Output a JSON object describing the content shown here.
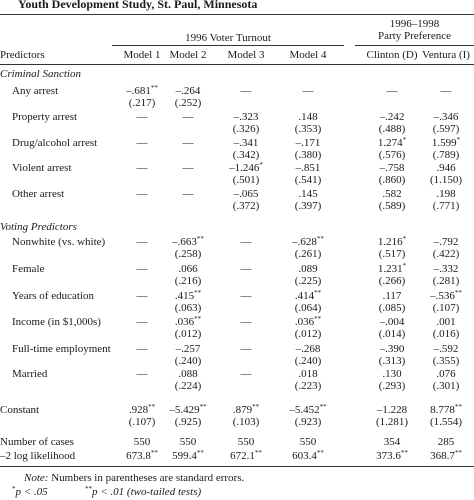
{
  "title": "Youth Development Study, St. Paul, Minnesota",
  "header": {
    "group1": "1996 Voter Turnout",
    "group2_line1": "1996–1998",
    "group2_line2": "Party Preference",
    "predictors": "Predictors",
    "models": [
      "Model 1",
      "Model 2",
      "Model 3",
      "Model 4",
      "Clinton (D)",
      "Ventura (I)"
    ]
  },
  "sections": [
    {
      "label": "Criminal Sanction",
      "rows": [
        {
          "name": "Any arrest",
          "cells": [
            {
              "v": "–.681",
              "sig": "**",
              "se": "(.217)"
            },
            {
              "v": "–.264",
              "sig": "",
              "se": "(.252)"
            },
            {
              "v": "—",
              "sig": "",
              "se": ""
            },
            {
              "v": "—",
              "sig": "",
              "se": ""
            },
            {
              "v": "—",
              "sig": "",
              "se": ""
            },
            {
              "v": "—",
              "sig": "",
              "se": ""
            }
          ]
        },
        {
          "name": "Property arrest",
          "cells": [
            {
              "v": "—",
              "sig": "",
              "se": ""
            },
            {
              "v": "—",
              "sig": "",
              "se": ""
            },
            {
              "v": "–.323",
              "sig": "",
              "se": "(.326)"
            },
            {
              "v": ".148",
              "sig": "",
              "se": "(.353)"
            },
            {
              "v": "–.242",
              "sig": "",
              "se": "(.488)"
            },
            {
              "v": "–.346",
              "sig": "",
              "se": "(.597)"
            }
          ]
        },
        {
          "name": "Drug/alcohol arrest",
          "cells": [
            {
              "v": "—",
              "sig": "",
              "se": ""
            },
            {
              "v": "—",
              "sig": "",
              "se": ""
            },
            {
              "v": "–.341",
              "sig": "",
              "se": "(.342)"
            },
            {
              "v": "–.171",
              "sig": "",
              "se": "(.380)"
            },
            {
              "v": "1.274",
              "sig": "*",
              "se": "(.576)"
            },
            {
              "v": "1.599",
              "sig": "*",
              "se": "(.789)"
            }
          ]
        },
        {
          "name": "Violent arrest",
          "cells": [
            {
              "v": "—",
              "sig": "",
              "se": ""
            },
            {
              "v": "—",
              "sig": "",
              "se": ""
            },
            {
              "v": "–1.246",
              "sig": "*",
              "se": "(.501)"
            },
            {
              "v": "–.851",
              "sig": "",
              "se": "(.541)"
            },
            {
              "v": "–.758",
              "sig": "",
              "se": "(.860)"
            },
            {
              "v": ".946",
              "sig": "",
              "se": "(1.150)"
            }
          ]
        },
        {
          "name": "Other arrest",
          "cells": [
            {
              "v": "—",
              "sig": "",
              "se": ""
            },
            {
              "v": "—",
              "sig": "",
              "se": ""
            },
            {
              "v": "–.065",
              "sig": "",
              "se": "(.372)"
            },
            {
              "v": ".145",
              "sig": "",
              "se": "(.397)"
            },
            {
              "v": ".582",
              "sig": "",
              "se": "(.589)"
            },
            {
              "v": ".198",
              "sig": "",
              "se": "(.771)"
            }
          ]
        }
      ]
    },
    {
      "label": "Voting Predictors",
      "rows": [
        {
          "name": "Nonwhite (vs. white)",
          "cells": [
            {
              "v": "—",
              "sig": "",
              "se": ""
            },
            {
              "v": "–.663",
              "sig": "**",
              "se": "(.258)"
            },
            {
              "v": "—",
              "sig": "",
              "se": ""
            },
            {
              "v": "–.628",
              "sig": "**",
              "se": "(.261)"
            },
            {
              "v": "1.216",
              "sig": "*",
              "se": "(.517)"
            },
            {
              "v": "–.792",
              "sig": "",
              "se": "(.422)"
            }
          ]
        },
        {
          "name": "Female",
          "cells": [
            {
              "v": "—",
              "sig": "",
              "se": ""
            },
            {
              "v": ".066",
              "sig": "",
              "se": "(.216)"
            },
            {
              "v": "—",
              "sig": "",
              "se": ""
            },
            {
              "v": ".089",
              "sig": "",
              "se": "(.225)"
            },
            {
              "v": "1.231",
              "sig": "*",
              "se": "(.266)"
            },
            {
              "v": "–.332",
              "sig": "",
              "se": "(.281)"
            }
          ]
        },
        {
          "name": "Years of education",
          "cells": [
            {
              "v": "—",
              "sig": "",
              "se": ""
            },
            {
              "v": ".415",
              "sig": "**",
              "se": "(.063)"
            },
            {
              "v": "—",
              "sig": "",
              "se": ""
            },
            {
              "v": ".414",
              "sig": "**",
              "se": "(.064)"
            },
            {
              "v": ".117",
              "sig": "",
              "se": "(.085)"
            },
            {
              "v": "–.536",
              "sig": "**",
              "se": "(.107)"
            }
          ]
        },
        {
          "name": "Income (in $1,000s)",
          "cells": [
            {
              "v": "—",
              "sig": "",
              "se": ""
            },
            {
              "v": ".036",
              "sig": "**",
              "se": "(.012)"
            },
            {
              "v": "—",
              "sig": "",
              "se": ""
            },
            {
              "v": ".036",
              "sig": "**",
              "se": "(.012)"
            },
            {
              "v": "–.004",
              "sig": "",
              "se": "(.014)"
            },
            {
              "v": ".001",
              "sig": "",
              "se": "(.016)"
            }
          ]
        },
        {
          "name": "Full-time employment",
          "cells": [
            {
              "v": "—",
              "sig": "",
              "se": ""
            },
            {
              "v": "–.257",
              "sig": "",
              "se": "(.240)"
            },
            {
              "v": "—",
              "sig": "",
              "se": ""
            },
            {
              "v": "–.268",
              "sig": "",
              "se": "(.240)"
            },
            {
              "v": "–.390",
              "sig": "",
              "se": "(.313)"
            },
            {
              "v": "–.592",
              "sig": "",
              "se": "(.355)"
            }
          ]
        },
        {
          "name": "Married",
          "cells": [
            {
              "v": "—",
              "sig": "",
              "se": ""
            },
            {
              "v": ".088",
              "sig": "",
              "se": "(.224)"
            },
            {
              "v": "—",
              "sig": "",
              "se": ""
            },
            {
              "v": ".018",
              "sig": "",
              "se": "(.223)"
            },
            {
              "v": ".130",
              "sig": "",
              "se": "(.293)"
            },
            {
              "v": ".076",
              "sig": "",
              "se": "(.301)"
            }
          ]
        }
      ]
    }
  ],
  "constant": {
    "name": "Constant",
    "cells": [
      {
        "v": ".928",
        "sig": "**",
        "se": "(.107)"
      },
      {
        "v": "–5.429",
        "sig": "**",
        "se": "(.925)"
      },
      {
        "v": ".879",
        "sig": "**",
        "se": "(.103)"
      },
      {
        "v": "–5.452",
        "sig": "**",
        "se": "(.923)"
      },
      {
        "v": "–1.228",
        "sig": "",
        "se": "(1.281)"
      },
      {
        "v": "8.778",
        "sig": "**",
        "se": "(1.554)"
      }
    ]
  },
  "cases": {
    "name": "Number of cases",
    "cells": [
      {
        "v": "550",
        "sig": ""
      },
      {
        "v": "550",
        "sig": ""
      },
      {
        "v": "550",
        "sig": ""
      },
      {
        "v": "550",
        "sig": ""
      },
      {
        "v": "354",
        "sig": ""
      },
      {
        "v": "285",
        "sig": ""
      }
    ]
  },
  "loglik": {
    "name": "–2 log likelihood",
    "cells": [
      {
        "v": "673.8",
        "sig": "**"
      },
      {
        "v": "599.4",
        "sig": "**"
      },
      {
        "v": "672.1",
        "sig": "**"
      },
      {
        "v": "603.4",
        "sig": "**"
      },
      {
        "v": "373.6",
        "sig": "**"
      },
      {
        "v": "368.7",
        "sig": "**"
      }
    ]
  },
  "notes": {
    "note_label": "Note:",
    "note_text": " Numbers in parentheses are standard errors.",
    "p05_mark": "*",
    "p05_text": "p < .05",
    "p01_mark": "**",
    "p01_text": "p < .01 (two-tailed tests)"
  }
}
